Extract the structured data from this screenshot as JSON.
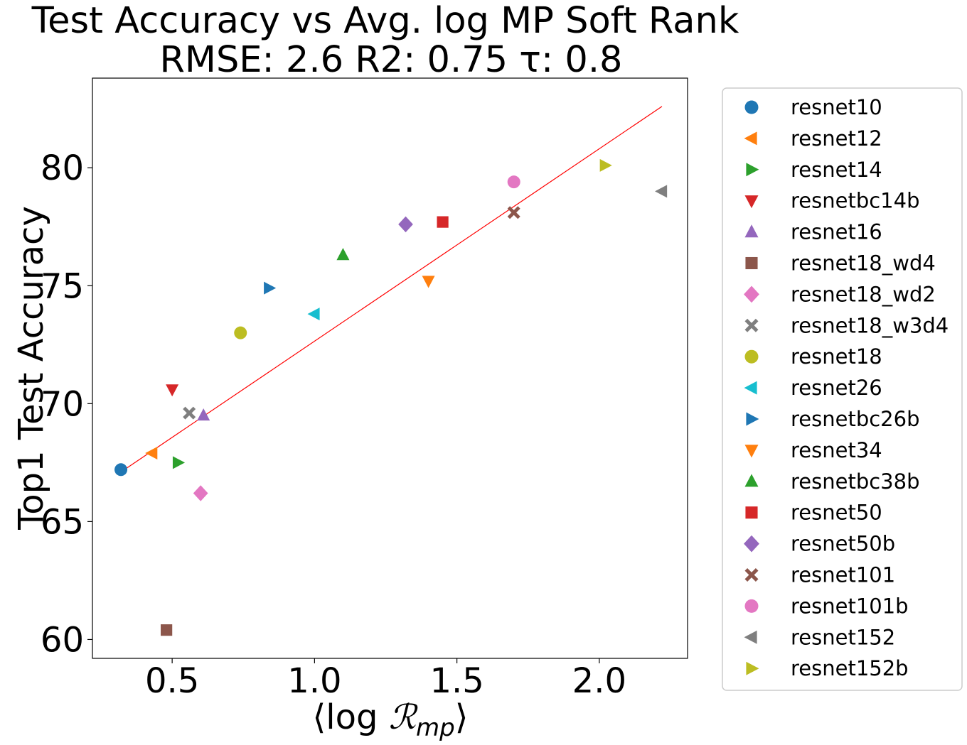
{
  "chart_data": {
    "type": "scatter",
    "title": "Test Accuracy vs Avg. log MP Soft Rank",
    "subtitle": "RMSE: 2.6 R2: 0.75 τ: 0.8",
    "xlabel": "⟨log ℛmp⟩",
    "xlabel_parts": {
      "left": "⟨log ",
      "script": "ℛ",
      "sub": "mp",
      "right": "⟩"
    },
    "ylabel": "Top1 Test Accuracy",
    "xlim": [
      0.22,
      2.31
    ],
    "ylim": [
      59.2,
      83.8
    ],
    "xticks": [
      0.5,
      1.0,
      1.5,
      2.0
    ],
    "xtick_labels": [
      "0.5",
      "1.0",
      "1.5",
      "2.0"
    ],
    "yticks": [
      60,
      65,
      70,
      75,
      80
    ],
    "ytick_labels": [
      "60",
      "65",
      "70",
      "75",
      "80"
    ],
    "grid": false,
    "legend_placement": "outside-right",
    "fit_line": {
      "color": "#ff0000",
      "x": [
        0.32,
        2.22
      ],
      "y": [
        67.1,
        82.6
      ]
    },
    "series": [
      {
        "name": "resnet10",
        "x": 0.32,
        "y": 67.2,
        "marker": "circle",
        "color": "#1f77b4"
      },
      {
        "name": "resnet12",
        "x": 0.43,
        "y": 67.9,
        "marker": "triangle-left",
        "color": "#ff7f0e"
      },
      {
        "name": "resnet14",
        "x": 0.52,
        "y": 67.5,
        "marker": "triangle-right",
        "color": "#2ca02c"
      },
      {
        "name": "resnetbc14b",
        "x": 0.5,
        "y": 70.6,
        "marker": "triangle-down",
        "color": "#d62728"
      },
      {
        "name": "resnet16",
        "x": 0.61,
        "y": 69.5,
        "marker": "triangle-up",
        "color": "#9467bd"
      },
      {
        "name": "resnet18_wd4",
        "x": 0.48,
        "y": 60.4,
        "marker": "square",
        "color": "#8c564b"
      },
      {
        "name": "resnet18_wd2",
        "x": 0.6,
        "y": 66.2,
        "marker": "diamond",
        "color": "#e377c2"
      },
      {
        "name": "resnet18_w3d4",
        "x": 0.56,
        "y": 69.6,
        "marker": "x",
        "color": "#7f7f7f"
      },
      {
        "name": "resnet18",
        "x": 0.74,
        "y": 73.0,
        "marker": "circle",
        "color": "#bcbd22"
      },
      {
        "name": "resnet26",
        "x": 1.0,
        "y": 73.8,
        "marker": "triangle-left",
        "color": "#17becf"
      },
      {
        "name": "resnetbc26b",
        "x": 0.84,
        "y": 74.9,
        "marker": "triangle-right",
        "color": "#1f77b4"
      },
      {
        "name": "resnet34",
        "x": 1.4,
        "y": 75.2,
        "marker": "triangle-down",
        "color": "#ff7f0e"
      },
      {
        "name": "resnetbc38b",
        "x": 1.1,
        "y": 76.3,
        "marker": "triangle-up",
        "color": "#2ca02c"
      },
      {
        "name": "resnet50",
        "x": 1.45,
        "y": 77.7,
        "marker": "square",
        "color": "#d62728"
      },
      {
        "name": "resnet50b",
        "x": 1.32,
        "y": 77.6,
        "marker": "diamond",
        "color": "#9467bd"
      },
      {
        "name": "resnet101",
        "x": 1.7,
        "y": 78.1,
        "marker": "x",
        "color": "#8c564b"
      },
      {
        "name": "resnet101b",
        "x": 1.7,
        "y": 79.4,
        "marker": "circle",
        "color": "#e377c2"
      },
      {
        "name": "resnet152",
        "x": 2.22,
        "y": 79.0,
        "marker": "triangle-left",
        "color": "#7f7f7f"
      },
      {
        "name": "resnet152b",
        "x": 2.02,
        "y": 80.1,
        "marker": "triangle-right",
        "color": "#bcbd22"
      }
    ]
  }
}
